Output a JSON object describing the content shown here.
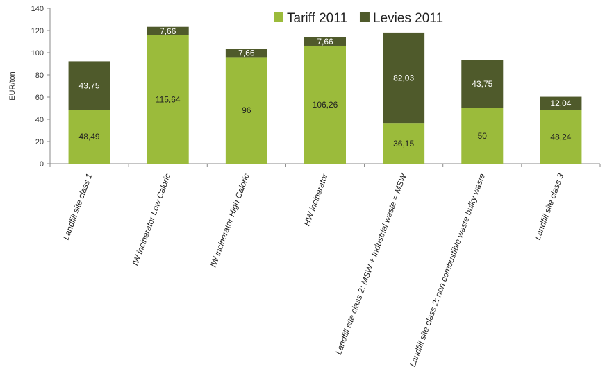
{
  "chart_data": {
    "type": "bar",
    "stacked": true,
    "ylabel": "EUR/ton",
    "ylim": [
      0,
      140
    ],
    "yticks": [
      0,
      20,
      40,
      60,
      80,
      100,
      120,
      140
    ],
    "grid": false,
    "legend_position": "top-right",
    "categories": [
      "Landfill site class 1",
      "IW incinerator Low Caloric",
      "IW incinerator High Caloric",
      "HW incinerator",
      "Landfill site class 2: MSW + Industrial waste = MSW",
      "Landfill site class 2: non combustible waste bulky waste",
      "Landfill site class 3"
    ],
    "series": [
      {
        "name": "Tariff 2011",
        "color": "#9bbb3b",
        "values": [
          48.49,
          115.64,
          96,
          106.26,
          36.15,
          50,
          48.24
        ],
        "labels": [
          "48,49",
          "115,64",
          "96",
          "106,26",
          "36,15",
          "50",
          "48,24"
        ]
      },
      {
        "name": "Levies 2011",
        "color": "#4f5a2b",
        "values": [
          43.75,
          7.66,
          7.66,
          7.66,
          82.03,
          43.75,
          12.04
        ],
        "labels": [
          "43,75",
          "7,66",
          "7,66",
          "7,66",
          "82,03",
          "43,75",
          "12,04"
        ]
      }
    ]
  }
}
